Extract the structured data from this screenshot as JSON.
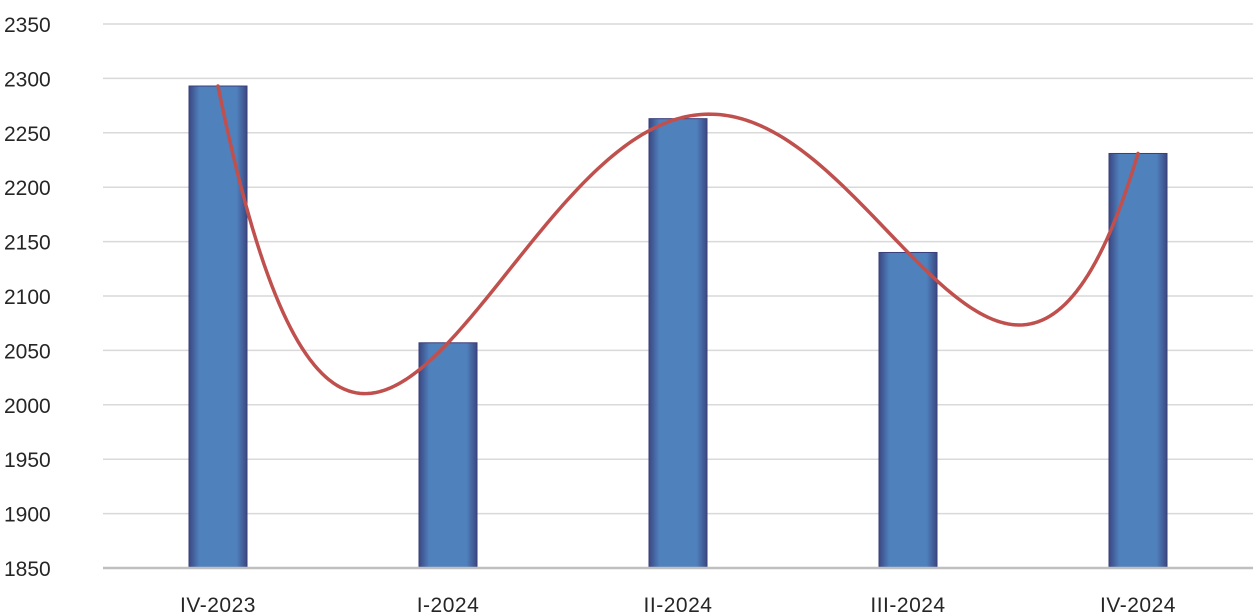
{
  "chart_data": {
    "type": "bar",
    "categories": [
      "IV-2023",
      "I-2024",
      "II-2024",
      "III-2024",
      "IV-2024"
    ],
    "values": [
      2293,
      2057,
      2263,
      2140,
      2231
    ],
    "ylim": [
      1850,
      2350
    ],
    "yticks": [
      1850,
      1900,
      1950,
      2000,
      2050,
      2100,
      2150,
      2200,
      2250,
      2300,
      2350
    ],
    "grid": true,
    "legend": "none",
    "trendline": {
      "type": "polynomial",
      "color": "#c0504d"
    },
    "colors": {
      "bar_fill": "#4f81bd",
      "bar_edge": "#3a3f7a",
      "trend": "#c0504d",
      "grid": "#d9d9d9",
      "axis": "#bfbfbf",
      "text": "#262626"
    }
  }
}
